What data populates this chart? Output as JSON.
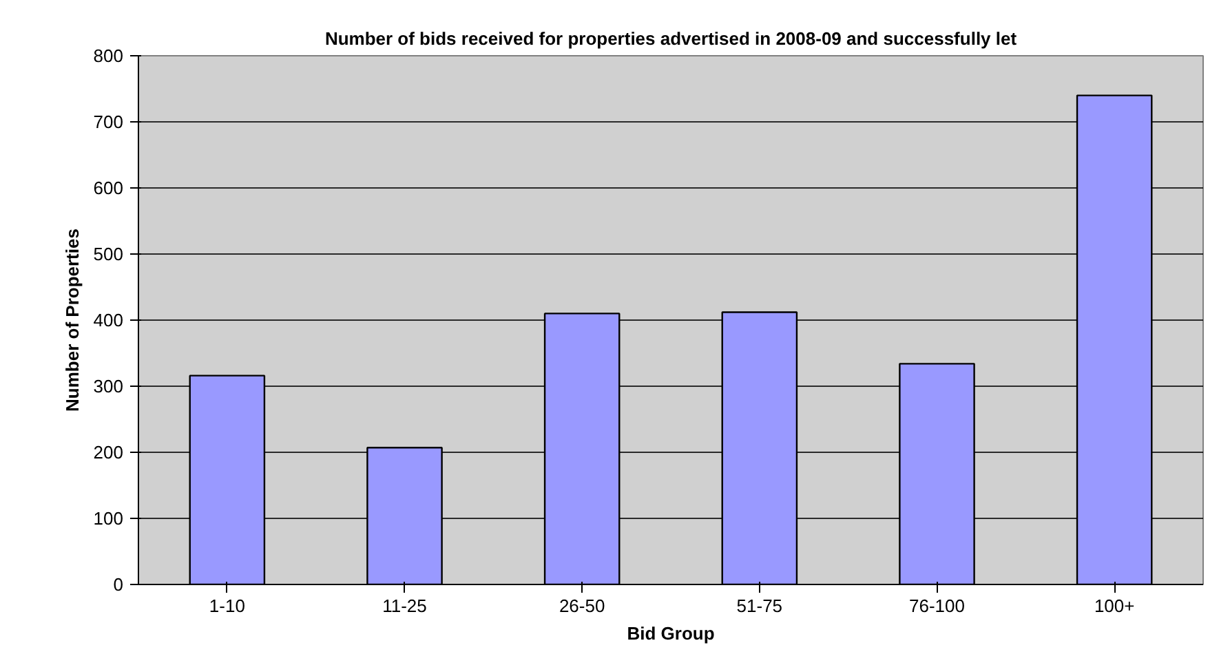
{
  "chart_data": {
    "type": "bar",
    "title": "Number of bids received for properties advertised in 2008-09 and successfully let",
    "xlabel": "Bid Group",
    "ylabel": "Number of Properties",
    "categories": [
      "1-10",
      "11-25",
      "26-50",
      "51-75",
      "76-100",
      "100+"
    ],
    "values": [
      316,
      207,
      410,
      412,
      334,
      740
    ],
    "color": "#9999ff",
    "ylim": [
      0,
      800
    ],
    "yticks": [
      0,
      100,
      200,
      300,
      400,
      500,
      600,
      700,
      800
    ],
    "grid": "y"
  }
}
